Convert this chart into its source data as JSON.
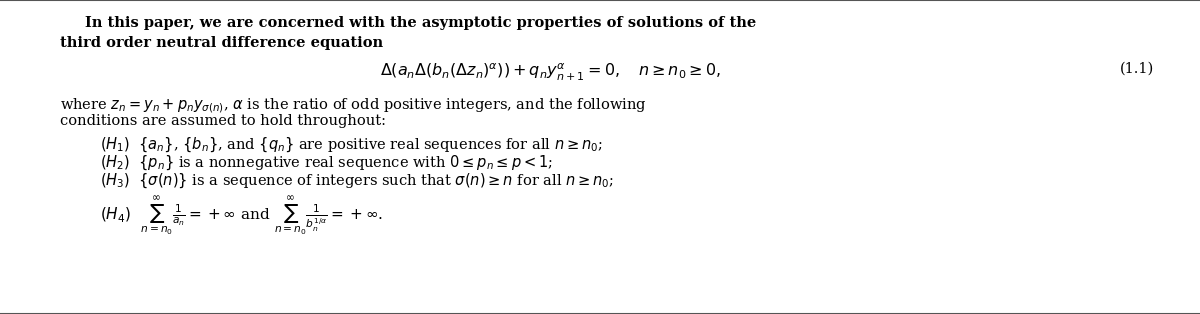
{
  "bg_color": "#ffffff",
  "border_top_color": "#555555",
  "border_bottom_color": "#555555",
  "title_line1": "In this paper, we are concerned with the asymptotic properties of solutions of the",
  "title_line2": "third order neutral difference equation",
  "equation": "$\\Delta(a_n\\Delta(b_n(\\Delta z_n)^{\\alpha})) + q_ny^{\\alpha}_{n+1} = 0, \\quad n \\geq n_0 \\geq 0,$",
  "eq_number": "(1.1)",
  "where_line1": "where $z_n = y_n + p_ny_{\\sigma(n)}$, $\\alpha$ is the ratio of odd positive integers, and the following",
  "where_line2": "conditions are assumed to hold throughout:",
  "H1": "$(H_1)$  $\\{a_n\\}$, $\\{b_n\\}$, and $\\{q_n\\}$ are positive real sequences for all $n \\geq n_0$;",
  "H2": "$(H_2)$  $\\{p_n\\}$ is a nonnegative real sequence with $0 \\leq p_n \\leq p < 1$;",
  "H3": "$(H_3)$  $\\{\\sigma(n)\\}$ is a sequence of integers such that $\\sigma(n) \\geq n$ for all $n \\geq n_0$;",
  "H4": "$(H_4)$  $\\sum_{n=n_0}^{\\infty} \\frac{1}{a_n} = +\\infty$ and $\\sum_{n=n_0}^{\\infty} \\frac{1}{b_n^{1/\\alpha}} = +\\infty.$",
  "text_color": "#000000",
  "font_size_body": 10.5,
  "font_size_eq": 11.5,
  "fig_width": 12.0,
  "fig_height": 3.14,
  "dpi": 100
}
